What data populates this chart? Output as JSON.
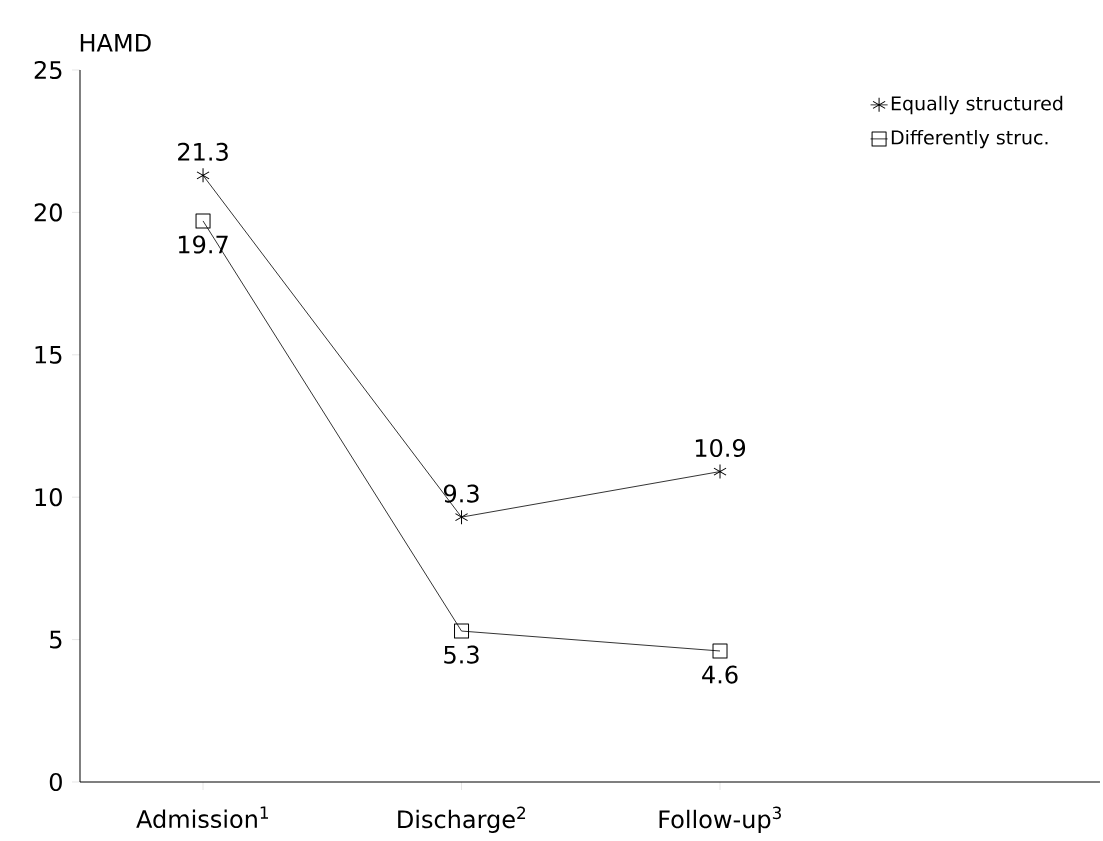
{
  "chart_data": {
    "type": "line",
    "ylabel": "HAMD",
    "categories": [
      "Admission$^{1}$",
      "Discharge$^{2}$",
      "Follow-up$^{3}$"
    ],
    "series": [
      {
        "name": "Equally structured",
        "color": "#000000",
        "marker": "cross",
        "values": [
          21.3,
          9.3,
          10.9
        ]
      },
      {
        "name": "Differently struc.",
        "color": "#000000",
        "marker": "square",
        "values": [
          19.7,
          5.3,
          4.6
        ]
      }
    ],
    "ylim": [
      0,
      25
    ],
    "yticks": [
      0,
      5,
      10,
      15,
      20,
      25
    ],
    "data_labels": true,
    "legend": "top right",
    "grid": false,
    "line_style": "solid"
  }
}
